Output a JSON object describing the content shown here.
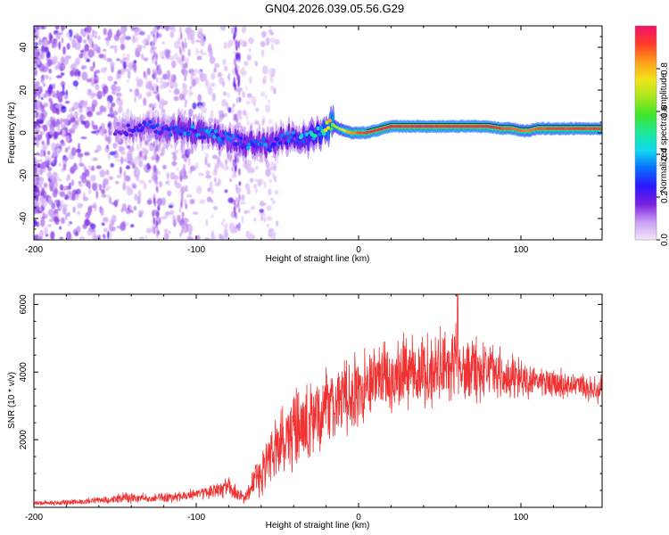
{
  "page": {
    "title": "GN04.2026.039.05.56.G29"
  },
  "colorbar": {
    "label": "Normalized spectral amplitude",
    "range": [
      0,
      1
    ],
    "ticks": [
      "0.0",
      "0.2",
      "0.4",
      "0.6",
      "0.8"
    ],
    "tick_values": [
      0.0,
      0.2,
      0.4,
      0.6,
      0.8
    ],
    "stops": [
      "#f4e6fa",
      "#c9a0f3",
      "#7a20e0",
      "#2d16ff",
      "#0a6cff",
      "#10d8f0",
      "#1be89b",
      "#3ee62a",
      "#a8e61e",
      "#f2e41a",
      "#ff9c1a",
      "#ff3a2a",
      "#f0106a"
    ]
  },
  "chart_data": [
    {
      "type": "heatmap",
      "name": "spectrogram",
      "title": "GN04.2026.039.05.56.G29",
      "xlabel": "Height of straight line (km)",
      "ylabel": "Frequency (Hz)",
      "xlim": [
        -200,
        150
      ],
      "ylim": [
        -50,
        50
      ],
      "xticks": [
        -200,
        -100,
        0,
        100
      ],
      "xtick_labels": [
        "-200",
        "-100",
        "0",
        "100"
      ],
      "yticks": [
        -40,
        -20,
        0,
        20,
        40
      ],
      "ytick_labels": [
        "-40",
        "-20",
        "0",
        "20",
        "40"
      ],
      "colorbar_label": "Normalized spectral amplitude",
      "ridge": {
        "description": "dominant frequency ridge of the signal",
        "x": [
          -150,
          -140,
          -130,
          -120,
          -110,
          -100,
          -90,
          -80,
          -70,
          -62,
          -55,
          -48,
          -42,
          -36,
          -30,
          -25,
          -20,
          -17,
          -12,
          -5,
          0,
          5,
          10,
          15,
          20,
          30,
          40,
          50,
          60,
          70,
          80,
          88,
          95,
          100,
          105,
          110,
          120,
          130,
          140,
          150
        ],
        "y": [
          2,
          1,
          3,
          1,
          2,
          0,
          -1,
          -3,
          -5,
          -4,
          -6,
          -4,
          -2,
          -3,
          -1,
          0,
          2,
          4,
          2,
          0,
          0,
          0,
          1,
          2,
          3,
          3,
          3,
          3,
          3,
          3,
          3,
          2,
          2,
          1,
          1,
          2,
          2,
          2,
          2,
          2
        ],
        "amplitude": [
          0.15,
          0.2,
          0.25,
          0.25,
          0.3,
          0.3,
          0.32,
          0.28,
          0.3,
          0.3,
          0.3,
          0.3,
          0.32,
          0.35,
          0.4,
          0.45,
          0.6,
          0.65,
          0.7,
          0.85,
          0.9,
          0.92,
          0.95,
          0.95,
          0.95,
          0.95,
          0.95,
          0.95,
          0.95,
          0.95,
          0.95,
          0.92,
          0.9,
          0.88,
          0.85,
          0.9,
          0.92,
          0.92,
          0.92,
          0.92
        ]
      },
      "noise": {
        "description": "scattered low-amplitude noise at low heights",
        "xlim": [
          -200,
          -70
        ],
        "amplitude_max": 0.18
      }
    },
    {
      "type": "line",
      "name": "snr",
      "xlabel": "Height of straight line (km)",
      "ylabel": "SNR (10 * v/v)",
      "xlim": [
        -200,
        150
      ],
      "ylim": [
        0,
        6300
      ],
      "xticks": [
        -200,
        -100,
        0,
        100
      ],
      "xtick_labels": [
        "-200",
        "-100",
        "0",
        "100"
      ],
      "yticks": [
        2000,
        4000,
        6000
      ],
      "ytick_labels": [
        "2000",
        "4000",
        "6000"
      ],
      "color": "#f03232",
      "series": [
        {
          "name": "SNR",
          "x": [
            -200,
            -180,
            -160,
            -150,
            -140,
            -130,
            -120,
            -110,
            -100,
            -90,
            -80,
            -75,
            -70,
            -65,
            -60,
            -55,
            -50,
            -45,
            -40,
            -35,
            -30,
            -25,
            -20,
            -15,
            -10,
            -5,
            0,
            5,
            10,
            15,
            20,
            25,
            30,
            40,
            50,
            60,
            70,
            80,
            90,
            100,
            110,
            120,
            130,
            140,
            150
          ],
          "y": [
            120,
            150,
            200,
            250,
            300,
            260,
            280,
            320,
            380,
            450,
            600,
            400,
            250,
            700,
            1100,
            1400,
            1800,
            2000,
            2200,
            2300,
            2500,
            2700,
            2900,
            3000,
            3200,
            3300,
            3400,
            3600,
            3700,
            3800,
            3900,
            3950,
            4000,
            4050,
            4100,
            4200,
            4150,
            4050,
            3900,
            3800,
            3700,
            3650,
            3600,
            3550,
            3500
          ],
          "spread": [
            80,
            90,
            120,
            150,
            200,
            150,
            160,
            180,
            200,
            250,
            350,
            300,
            200,
            600,
            900,
            1000,
            1200,
            1300,
            1400,
            1500,
            1500,
            1400,
            1400,
            1400,
            1500,
            1400,
            1300,
            1300,
            1300,
            1300,
            1300,
            1300,
            1300,
            1300,
            1300,
            1300,
            1200,
            1100,
            900,
            700,
            500,
            500,
            500,
            500,
            500
          ]
        }
      ],
      "peak": {
        "x": 61,
        "y": 6300
      }
    }
  ]
}
